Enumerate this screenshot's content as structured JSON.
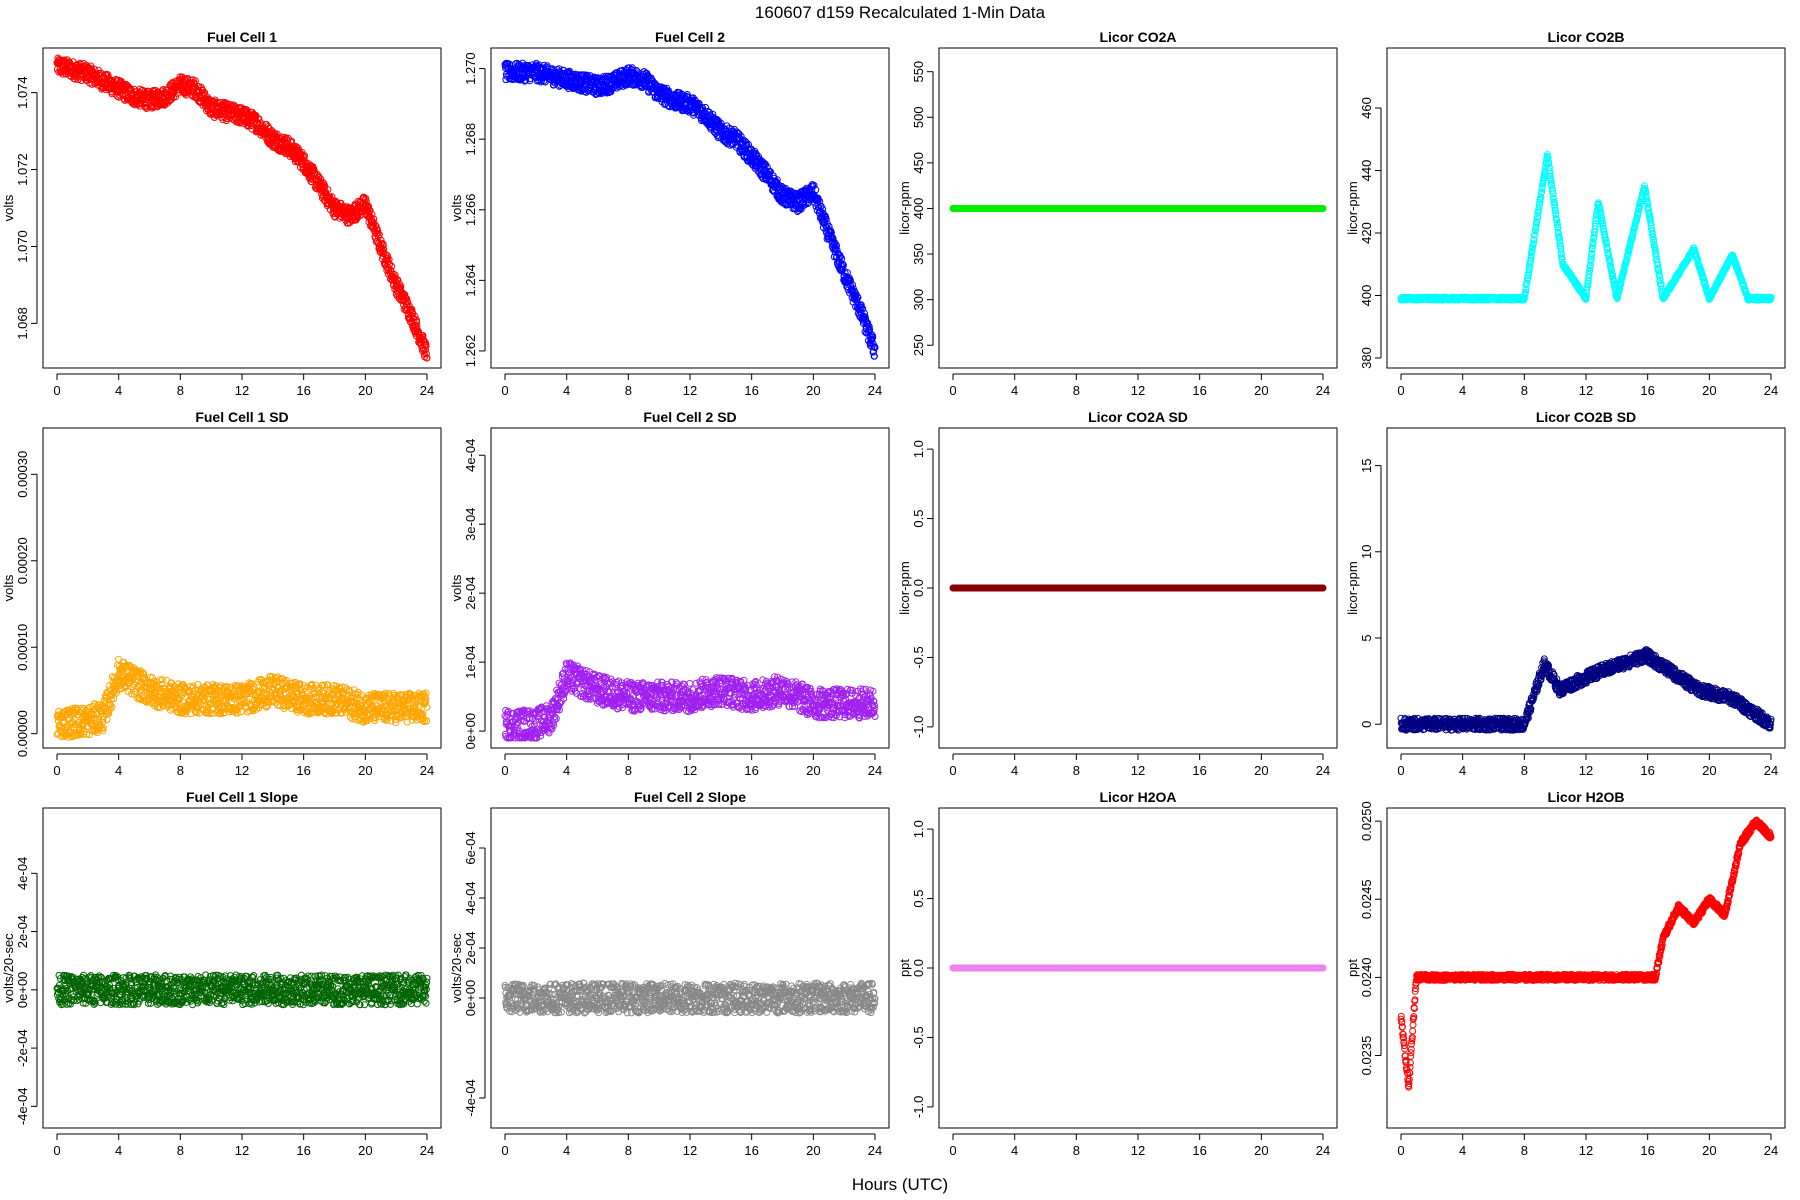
{
  "title": "160607   d159   Recalculated 1-Min Data",
  "xlabel": "Hours (UTC)",
  "chart_data": [
    {
      "type": "scatter",
      "title": "Fuel Cell 1",
      "ylabel": "volts",
      "color": "#ff0000",
      "xlim": [
        0,
        24
      ],
      "ylim": [
        1.0671,
        1.0749
      ],
      "xticks": [
        0,
        4,
        8,
        12,
        16,
        20,
        24
      ],
      "yticks": [
        1.068,
        1.07,
        1.072,
        1.074
      ],
      "ytick_labels": [
        "1.068",
        "1.070",
        "1.072",
        "1.074"
      ],
      "series": [
        {
          "x": [
            0,
            1,
            2,
            3,
            4,
            5,
            6,
            7,
            8,
            9,
            10,
            11,
            12,
            13,
            14,
            15,
            16,
            17,
            18,
            19,
            20,
            21,
            22,
            23,
            24
          ],
          "y": [
            1.0747,
            1.0746,
            1.0745,
            1.0743,
            1.0741,
            1.0739,
            1.0738,
            1.0739,
            1.0742,
            1.0741,
            1.0736,
            1.0735,
            1.0734,
            1.0732,
            1.0728,
            1.0726,
            1.0722,
            1.0716,
            1.071,
            1.0708,
            1.0711,
            1.07,
            1.069,
            1.0682,
            1.0672
          ]
        }
      ]
    },
    {
      "type": "scatter",
      "title": "Fuel Cell 2",
      "ylabel": "volts",
      "color": "#0000ff",
      "xlim": [
        0,
        24
      ],
      "ylim": [
        1.2618,
        1.2703
      ],
      "xticks": [
        0,
        4,
        8,
        12,
        16,
        20,
        24
      ],
      "yticks": [
        1.262,
        1.264,
        1.266,
        1.268,
        1.27
      ],
      "ytick_labels": [
        "1.262",
        "1.264",
        "1.266",
        "1.268",
        "1.270"
      ],
      "series": [
        {
          "x": [
            0,
            1,
            2,
            3,
            4,
            5,
            6,
            7,
            8,
            9,
            10,
            11,
            12,
            13,
            14,
            15,
            16,
            17,
            18,
            19,
            20,
            21,
            22,
            23,
            24
          ],
          "y": [
            1.2699,
            1.2699,
            1.2699,
            1.2698,
            1.2697,
            1.2696,
            1.2695,
            1.2696,
            1.2698,
            1.2697,
            1.2693,
            1.2691,
            1.269,
            1.2687,
            1.2682,
            1.268,
            1.2675,
            1.267,
            1.2664,
            1.2662,
            1.2665,
            1.2653,
            1.2642,
            1.2632,
            1.262
          ]
        }
      ]
    },
    {
      "type": "scatter",
      "title": "Licor CO2A",
      "ylabel": "licor-ppm",
      "color": "#00ee00",
      "xlim": [
        0,
        24
      ],
      "ylim": [
        236,
        565
      ],
      "xticks": [
        0,
        4,
        8,
        12,
        16,
        20,
        24
      ],
      "yticks": [
        250,
        300,
        350,
        400,
        450,
        500,
        550
      ],
      "ytick_labels": [
        "250",
        "300",
        "350",
        "400",
        "450",
        "500",
        "550"
      ],
      "series": [
        {
          "x": [
            0,
            24
          ],
          "y": [
            400,
            400
          ]
        }
      ]
    },
    {
      "type": "scatter",
      "title": "Licor CO2B",
      "ylabel": "licor-ppm",
      "color": "#00ffff",
      "xlim": [
        0,
        24
      ],
      "ylim": [
        380,
        476
      ],
      "xticks": [
        0,
        4,
        8,
        12,
        16,
        20,
        24
      ],
      "yticks": [
        380,
        400,
        420,
        440,
        460
      ],
      "ytick_labels": [
        "380",
        "400",
        "420",
        "440",
        "460"
      ],
      "series": [
        {
          "x": [
            0,
            2,
            4,
            6,
            8,
            9.5,
            10.5,
            12,
            12.8,
            14,
            15.8,
            17,
            19,
            20,
            21.5,
            22.5,
            24
          ],
          "y": [
            399,
            399,
            399,
            399,
            399,
            445,
            410,
            399,
            430,
            399,
            435,
            399,
            415,
            399,
            413,
            399,
            399
          ]
        }
      ]
    },
    {
      "type": "scatter",
      "title": "Fuel Cell 1 SD",
      "ylabel": "volts",
      "color": "#ffa500",
      "xlim": [
        0,
        24
      ],
      "ylim": [
        -5e-06,
        0.000342
      ],
      "xticks": [
        0,
        4,
        8,
        12,
        16,
        20,
        24
      ],
      "yticks": [
        0,
        0.0001,
        0.0002,
        0.0003
      ],
      "ytick_labels": [
        "0.00000",
        "0.00010",
        "0.00020",
        "0.00030"
      ],
      "series": [
        {
          "x": [
            0,
            2,
            3,
            4,
            6,
            8,
            10,
            12,
            14,
            16,
            18,
            20,
            22,
            24
          ],
          "y": [
            1.2e-05,
            1.5e-05,
            2e-05,
            7e-05,
            5e-05,
            4e-05,
            4e-05,
            4e-05,
            5e-05,
            4e-05,
            4e-05,
            3e-05,
            3e-05,
            3e-05
          ]
        }
      ]
    },
    {
      "type": "scatter",
      "title": "Fuel Cell 2 SD",
      "ylabel": "volts",
      "color": "#a020f0",
      "xlim": [
        0,
        24
      ],
      "ylim": [
        -1e-05,
        0.000425
      ],
      "xticks": [
        0,
        4,
        8,
        12,
        16,
        20,
        24
      ],
      "yticks": [
        0,
        0.0001,
        0.0002,
        0.0003,
        0.0004
      ],
      "ytick_labels": [
        "0e+00",
        "1e-04",
        "2e-04",
        "3e-04",
        "4e-04"
      ],
      "series": [
        {
          "x": [
            0,
            2,
            3,
            4,
            6,
            8,
            10,
            12,
            14,
            16,
            18,
            20,
            22,
            24
          ],
          "y": [
            1e-05,
            1e-05,
            2e-05,
            8e-05,
            6e-05,
            5e-05,
            5e-05,
            5e-05,
            6e-05,
            5e-05,
            6e-05,
            4e-05,
            4e-05,
            4e-05
          ]
        }
      ]
    },
    {
      "type": "scatter",
      "title": "Licor CO2A SD",
      "ylabel": "licor-ppm",
      "color": "#8b0000",
      "xlim": [
        0,
        24
      ],
      "ylim": [
        -1.08,
        1.08
      ],
      "xticks": [
        0,
        4,
        8,
        12,
        16,
        20,
        24
      ],
      "yticks": [
        -1,
        -0.5,
        0,
        0.5,
        1
      ],
      "ytick_labels": [
        "-1.0",
        "-0.5",
        "0.0",
        "0.5",
        "1.0"
      ],
      "series": [
        {
          "x": [
            0,
            24
          ],
          "y": [
            0,
            0
          ]
        }
      ]
    },
    {
      "type": "scatter",
      "title": "Licor CO2B SD",
      "ylabel": "licor-ppm",
      "color": "#000080",
      "xlim": [
        0,
        24
      ],
      "ylim": [
        -0.8,
        16.6
      ],
      "xticks": [
        0,
        4,
        8,
        12,
        16,
        20,
        24
      ],
      "yticks": [
        0,
        5,
        10,
        15
      ],
      "ytick_labels": [
        "0",
        "5",
        "10",
        "15"
      ],
      "series": [
        {
          "x": [
            0,
            4,
            8,
            9.3,
            10.3,
            12.7,
            15.9,
            19.3,
            21.5,
            24
          ],
          "y": [
            0,
            0,
            0,
            3.5,
            2,
            3,
            4,
            2,
            1.5,
            0
          ]
        }
      ]
    },
    {
      "type": "scatter",
      "title": "Fuel Cell 1 Slope",
      "ylabel": "volts/20-sec",
      "color": "#006400",
      "xlim": [
        0,
        24
      ],
      "ylim": [
        -0.00044,
        0.00059
      ],
      "xticks": [
        0,
        4,
        8,
        12,
        16,
        20,
        24
      ],
      "yticks": [
        -0.0004,
        -0.0002,
        0,
        0.0002,
        0.0004
      ],
      "ytick_labels": [
        "-4e-04",
        "-2e-04",
        "0e+00",
        "2e-04",
        "4e-04"
      ],
      "series": [
        {
          "x": [
            0,
            4,
            8,
            12,
            16,
            20,
            24
          ],
          "y": [
            0,
            0,
            0,
            0,
            0,
            0,
            0
          ]
        }
      ]
    },
    {
      "type": "scatter",
      "title": "Fuel Cell 2 Slope",
      "ylabel": "volts/20-sec",
      "color": "#888888",
      "xlim": [
        0,
        24
      ],
      "ylim": [
        -0.00048,
        0.00072
      ],
      "xticks": [
        0,
        4,
        8,
        12,
        16,
        20,
        24
      ],
      "yticks": [
        -0.0004,
        0,
        0.0002,
        0.0004,
        0.0006
      ],
      "ytick_labels": [
        "-4e-04",
        "0e+00",
        "2e-04",
        "4e-04",
        "6e-04"
      ],
      "series": [
        {
          "x": [
            0,
            4,
            8,
            12,
            16,
            20,
            24
          ],
          "y": [
            0,
            0,
            0,
            0,
            0,
            0,
            0
          ]
        }
      ]
    },
    {
      "type": "scatter",
      "title": "Licor H2OA",
      "ylabel": "ppt",
      "color": "#ee82ee",
      "xlim": [
        0,
        24
      ],
      "ylim": [
        -1.08,
        1.08
      ],
      "xticks": [
        0,
        4,
        8,
        12,
        16,
        20,
        24
      ],
      "yticks": [
        -1,
        -0.5,
        0,
        0.5,
        1
      ],
      "ytick_labels": [
        "-1.0",
        "-0.5",
        "0.0",
        "0.5",
        "1.0"
      ],
      "series": [
        {
          "x": [
            0,
            24
          ],
          "y": [
            0,
            0
          ]
        }
      ]
    },
    {
      "type": "scatter",
      "title": "Licor H2OB",
      "ylabel": "ppt",
      "color": "#ff0000",
      "xlim": [
        0,
        24
      ],
      "ylim": [
        0.0231,
        0.02502
      ],
      "xticks": [
        0,
        4,
        8,
        12,
        16,
        20,
        24
      ],
      "yticks": [
        0.0235,
        0.024,
        0.0245,
        0.025
      ],
      "ytick_labels": [
        "0.0235",
        "0.0240",
        "0.0245",
        "0.0250"
      ],
      "series": [
        {
          "x": [
            0,
            0.5,
            1,
            4,
            8,
            12,
            16,
            16.5,
            17,
            18,
            19,
            20,
            21,
            22,
            23,
            24
          ],
          "y": [
            0.02375,
            0.0233,
            0.024,
            0.024,
            0.024,
            0.024,
            0.024,
            0.024,
            0.02425,
            0.02445,
            0.02435,
            0.0245,
            0.0244,
            0.02485,
            0.025,
            0.0249
          ]
        }
      ]
    }
  ]
}
